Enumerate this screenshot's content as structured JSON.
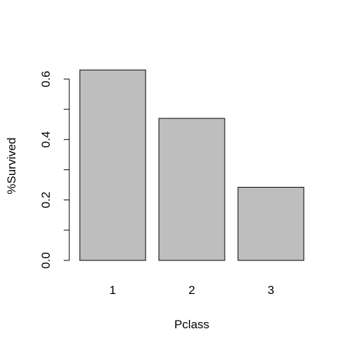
{
  "chart_data": {
    "type": "bar",
    "title": "",
    "xlabel": "Pclass",
    "ylabel": "%Survived",
    "categories": [
      "1",
      "2",
      "3"
    ],
    "values": [
      0.63,
      0.47,
      0.242
    ],
    "ylim": [
      0,
      0.63
    ],
    "y_ticks": [
      0.0,
      0.2,
      0.4,
      0.6
    ],
    "y_tick_labels": [
      "0.0",
      "0.2",
      "0.4",
      "0.6"
    ],
    "y_minor_ticks": [
      0.1,
      0.3,
      0.5
    ],
    "grid": false,
    "bar_color": "#bebebe",
    "bar_border": "#000000"
  }
}
